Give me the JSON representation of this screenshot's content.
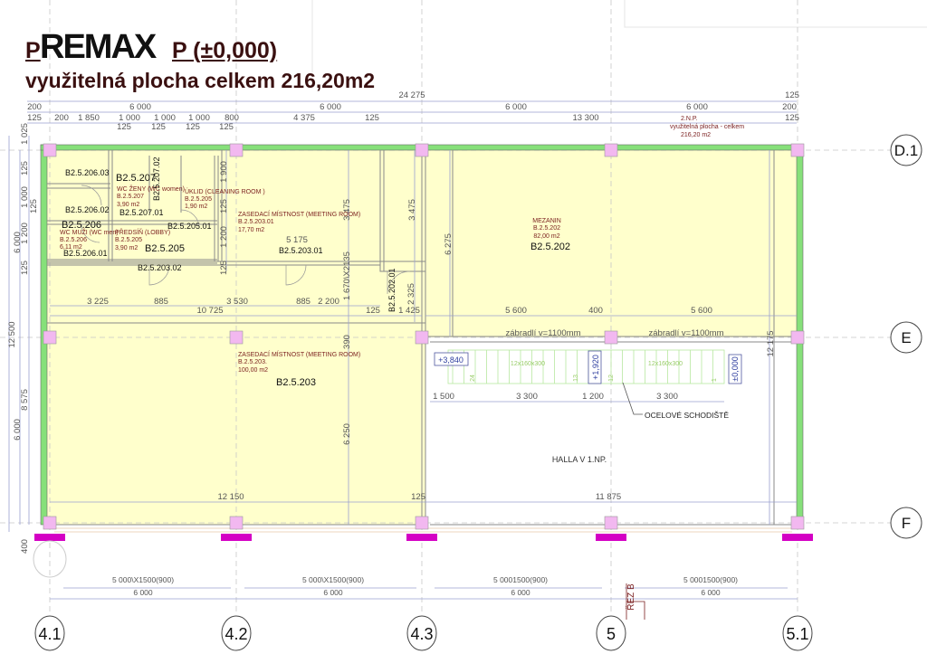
{
  "logo": "REMAX",
  "title": {
    "prefix": "P",
    "suffix": "P (±0,000)",
    "subtitle": "využitelná plocha celkem 216,20m2"
  },
  "colors": {
    "wall": "#86e07a",
    "floor": "#ffffcc",
    "column": "#f2b8f0",
    "footing": "#d400c4",
    "dimension": "#9aa0d0",
    "room_text": "#7a1e1e",
    "stair": "#b8e8a0"
  },
  "dimensions": {
    "top": [
      "24 275",
      "125",
      "200",
      "6 000",
      "6 000",
      "6 000",
      "6 000",
      "200",
      "125",
      "200",
      "1 850",
      "1 000",
      "1 000",
      "1 000",
      "800",
      "4 375",
      "125",
      "13 300",
      "125",
      "125",
      "125",
      "125",
      "125"
    ],
    "left": [
      "12 500",
      "6 000",
      "6 000",
      "1 025",
      "125",
      "1 000",
      "1 200",
      "125",
      "8 575",
      "125",
      "400"
    ],
    "inner": [
      "1 900",
      "125",
      "1 200",
      "125",
      "3 475",
      "3 475",
      "5 175",
      "1 670\\X2135",
      "2 325",
      "3 225",
      "885",
      "3 530",
      "885",
      "2 200",
      "125",
      "1 425",
      "5 600",
      "400",
      "5 600",
      "10 725",
      "6 275",
      "12 175",
      "390",
      "6 250",
      "1 500",
      "3 300",
      "1 200",
      "3 300",
      "12 150",
      "125",
      "11 875"
    ],
    "bottom": [
      "5 000\\X1500(900)",
      "5 000\\X1500(900)",
      "5 0001500(900)",
      "5 0001500(900)",
      "6 000",
      "6 000",
      "6 000",
      "6 000"
    ]
  },
  "rooms": [
    {
      "code": "B2.5.206.03"
    },
    {
      "code": "B2.5.207",
      "name": "WC ŽENY (WC women)",
      "id": "B.2.5.207",
      "area": "3,90 m2"
    },
    {
      "code": "B2.5.207.02"
    },
    {
      "code": "B2.5.207.01"
    },
    {
      "code": "B2.5.206.02"
    },
    {
      "name": "ÚKLID (CLEANING ROOM )",
      "id": "B.2.5.205",
      "area": "1,90 m2"
    },
    {
      "code": "B2.5.206",
      "name": "WC MUŽI (WC men)",
      "id": "B.2.5.206",
      "area": "6,11 m2"
    },
    {
      "code": "B2.5.206.01"
    },
    {
      "code": "B2.5.205",
      "name": "PŘEDSÍŇ (LOBBY)",
      "id": "B.2.5.205",
      "area": "3,90 m2"
    },
    {
      "code": "B2.5.205.01"
    },
    {
      "code": "B2.5.203.01",
      "name": "ZASEDACÍ MÍSTNOST (MEETING ROOM)",
      "id": "B.2.5.203.01",
      "area": "17,70 m2"
    },
    {
      "code": "B2.5.203.02"
    },
    {
      "code": "B2.5.202.01"
    },
    {
      "code": "B2.5.202",
      "name": "MEZANIN",
      "id": "B.2.5.202",
      "area": "82,00 m2"
    },
    {
      "code": "B2.5.203",
      "name": "ZASEDACÍ MÍSTNOST (MEETING ROOM)",
      "id": "B.2.5.203.",
      "area": "100,00 m2"
    },
    {
      "name": "HALLA V 1.NP."
    }
  ],
  "floor_note": [
    "2.N.P.",
    "využitelná plocha - celkem",
    "216,20 m2"
  ],
  "railing": [
    "zábradlí v=1100mm",
    "zábradlí v=1100mm"
  ],
  "stair": {
    "levels": [
      "+3,840",
      "+1,920",
      "±0,000"
    ],
    "steps": [
      "12x160x300",
      "12x160x300"
    ],
    "numbers": [
      "24",
      "13",
      "12",
      "1"
    ],
    "label": "OCELOVÉ SCHODIŠTĚ"
  },
  "section": "ŘEZ B",
  "grid_axes": {
    "columns": [
      "4.1",
      "4.2",
      "4.3",
      "5",
      "5.1"
    ],
    "rows": [
      "D.1",
      "E",
      "F"
    ]
  }
}
